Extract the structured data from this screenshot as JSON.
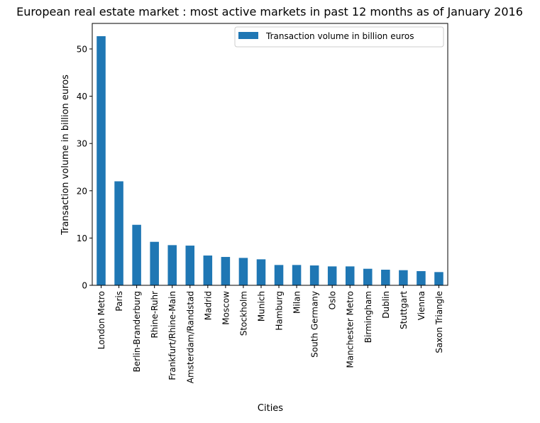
{
  "chart_data": {
    "type": "bar",
    "title": "European real estate market : most active markets in past 12 months as of January 2016",
    "xlabel": "Cities",
    "ylabel": "Transaction volume in billion euros",
    "categories": [
      "London Metro",
      "Paris",
      "Berlin-Branderburg",
      "Rhine-Ruhr",
      "Frankfurt/Rhine-Main",
      "Amsterdam/Randstad",
      "Madrid",
      "Moscow",
      "Stockholm",
      "Munich",
      "Hamburg",
      "Milan",
      "South Germany",
      "Oslo",
      "Manchester Metro",
      "Birmingham",
      "Dublin",
      "Stuttgart",
      "Vienna",
      "Saxon Triangle"
    ],
    "series": [
      {
        "name": "Transaction volume in billion euros",
        "color": "#1f77b4",
        "values": [
          52.7,
          22.0,
          12.8,
          9.2,
          8.5,
          8.4,
          6.3,
          6.0,
          5.8,
          5.5,
          4.3,
          4.3,
          4.2,
          4.0,
          4.0,
          3.5,
          3.3,
          3.2,
          3.0,
          2.8
        ]
      }
    ],
    "yticks": [
      0,
      10,
      20,
      30,
      40,
      50
    ],
    "ylim": [
      0,
      55.4
    ],
    "grid": false,
    "legend_position": "upper right"
  }
}
